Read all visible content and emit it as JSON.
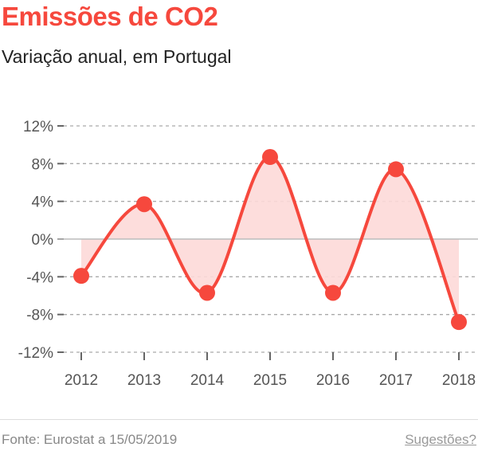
{
  "title": "Emissões de CO2",
  "subtitle": "Variação anual, em Portugal",
  "footer": {
    "source": "Fonte: Eurostat a 15/05/2019",
    "suggestions_link": "Sugestões?"
  },
  "colors": {
    "accent": "#f6483d",
    "area_fill": "#fdd9d8",
    "grid": "#aaaaaa",
    "zero_line": "#bbbbbb"
  },
  "chart_data": {
    "type": "line",
    "x": [
      2012,
      2013,
      2014,
      2015,
      2016,
      2017,
      2018
    ],
    "x_tick_labels": [
      "2012",
      "2013",
      "2014",
      "2015",
      "2016",
      "2017",
      "2018"
    ],
    "values": [
      -3.9,
      3.7,
      -5.7,
      8.7,
      -5.7,
      7.4,
      -8.8
    ],
    "y_ticks": [
      12,
      8,
      4,
      0,
      -4,
      -8,
      -12
    ],
    "y_tick_labels": [
      "12%",
      "8%",
      "4%",
      "0%",
      "-4%",
      "-8%",
      "-12%"
    ],
    "ylim": [
      -12,
      12
    ],
    "grid": "horizontal dashed",
    "curve": "smooth",
    "area_to_zero": true,
    "markers": true
  }
}
